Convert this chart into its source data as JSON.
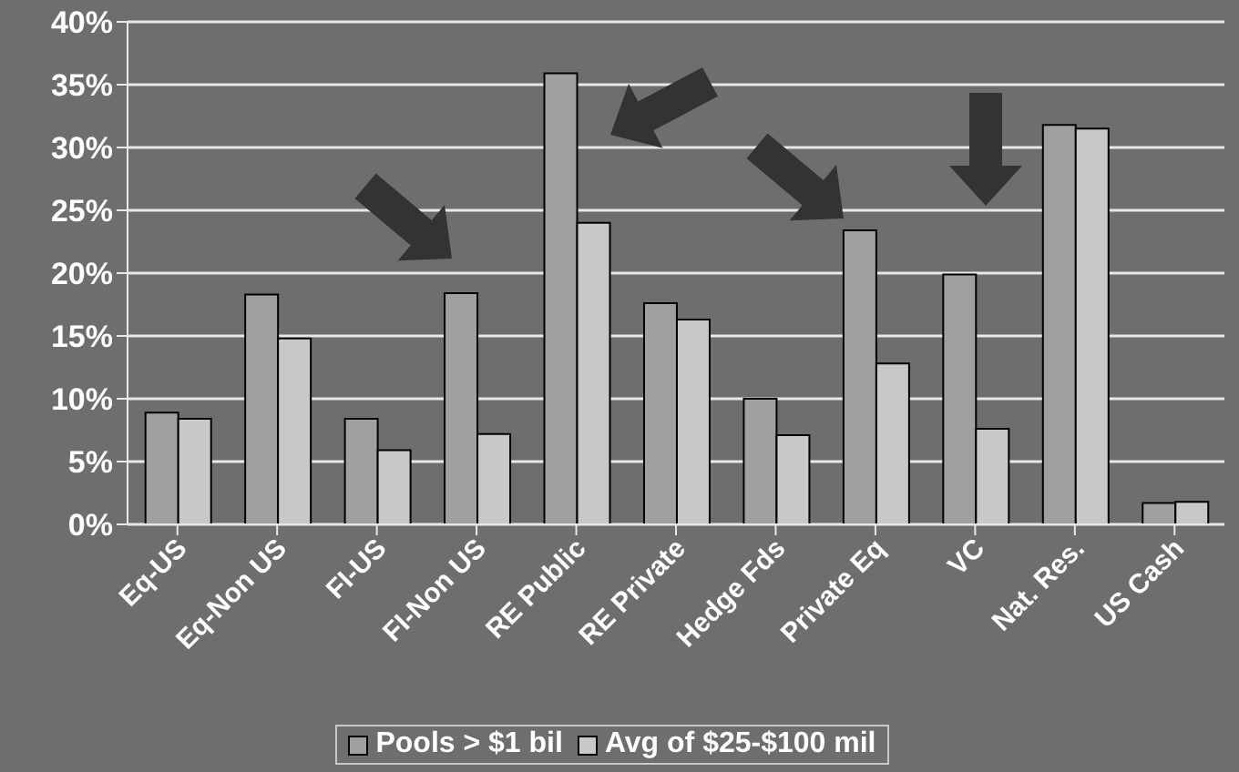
{
  "chart_data": {
    "type": "bar",
    "categories": [
      "Eq-US",
      "Eq-Non US",
      "FI-US",
      "FI-Non US",
      "RE Public",
      "RE Private",
      "Hedge Fds",
      "Private Eq",
      "VC",
      "Nat. Res.",
      "US Cash"
    ],
    "series": [
      {
        "name": "Pools > $1 bil",
        "color": "#a0a0a0",
        "values": [
          8.9,
          18.3,
          8.4,
          18.4,
          35.9,
          17.6,
          10.0,
          23.4,
          19.9,
          31.8,
          1.7
        ]
      },
      {
        "name": "Avg of $25-$100 mil",
        "color": "#c8c8c8",
        "values": [
          8.4,
          14.8,
          5.9,
          7.2,
          24.0,
          16.3,
          7.1,
          12.8,
          7.6,
          31.5,
          1.8
        ]
      }
    ],
    "ylim": [
      0,
      40
    ],
    "yticks": [
      {
        "value": 0,
        "label": "0%"
      },
      {
        "value": 5,
        "label": "5%"
      },
      {
        "value": 10,
        "label": "10%"
      },
      {
        "value": 15,
        "label": "15%"
      },
      {
        "value": 20,
        "label": "20%"
      },
      {
        "value": 25,
        "label": "25%"
      },
      {
        "value": 30,
        "label": "30%"
      },
      {
        "value": 35,
        "label": "35%"
      },
      {
        "value": 40,
        "label": "40%"
      }
    ],
    "grid": "y",
    "legend": "bottom"
  }
}
